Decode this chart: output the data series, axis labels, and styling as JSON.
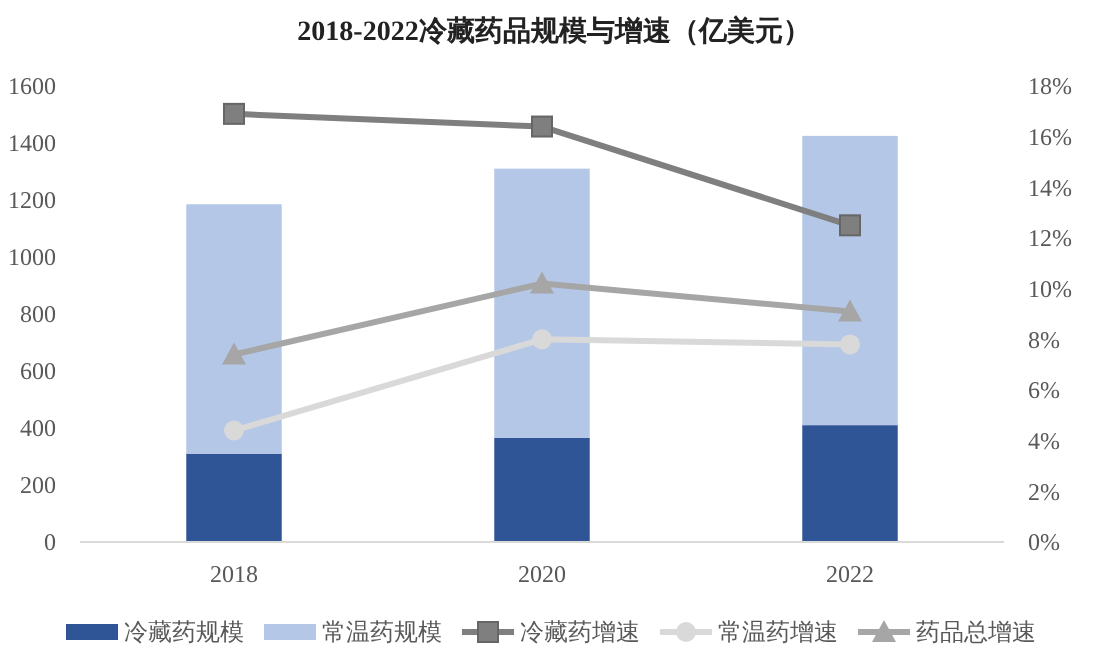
{
  "chart_data": {
    "type": "bar",
    "title": "2018-2022冷藏药品规模与增速（亿美元）",
    "categories": [
      "2018",
      "2020",
      "2022"
    ],
    "stacked": true,
    "legend": "bottom",
    "grid": false,
    "series": [
      {
        "name": "冷藏药规模",
        "color": "#2f5597",
        "values": [
          310,
          365,
          410
        ]
      },
      {
        "name": "常温药规模",
        "color": "#b4c7e7",
        "values": [
          875,
          945,
          1015
        ]
      },
      {
        "name": "冷藏药增速",
        "color": "#7f7f7f",
        "type": "line",
        "axis": "y2",
        "marker": "square",
        "values": [
          16.9,
          16.4,
          12.5
        ]
      },
      {
        "name": "常温药增速",
        "color": "#d9d9d9",
        "type": "line",
        "axis": "y2",
        "marker": "circle",
        "values": [
          4.4,
          8.0,
          7.8
        ]
      },
      {
        "name": "药品总增速",
        "color": "#a6a6a6",
        "type": "line",
        "axis": "y2",
        "marker": "triangle",
        "values": [
          7.4,
          10.2,
          9.1
        ]
      }
    ],
    "ylim": [
      0,
      1600
    ],
    "yticks": [
      0,
      200,
      400,
      600,
      800,
      1000,
      1200,
      1400,
      1600
    ],
    "y2lim": [
      0,
      18
    ],
    "y2ticks": [
      {
        "value": 0,
        "label": "0%"
      },
      {
        "value": 2,
        "label": "2%"
      },
      {
        "value": 4,
        "label": "4%"
      },
      {
        "value": 6,
        "label": "6%"
      },
      {
        "value": 8,
        "label": "8%"
      },
      {
        "value": 10,
        "label": "10%"
      },
      {
        "value": 12,
        "label": "12%"
      },
      {
        "value": 14,
        "label": "14%"
      },
      {
        "value": 16,
        "label": "16%"
      },
      {
        "value": 18,
        "label": "18%"
      }
    ]
  }
}
